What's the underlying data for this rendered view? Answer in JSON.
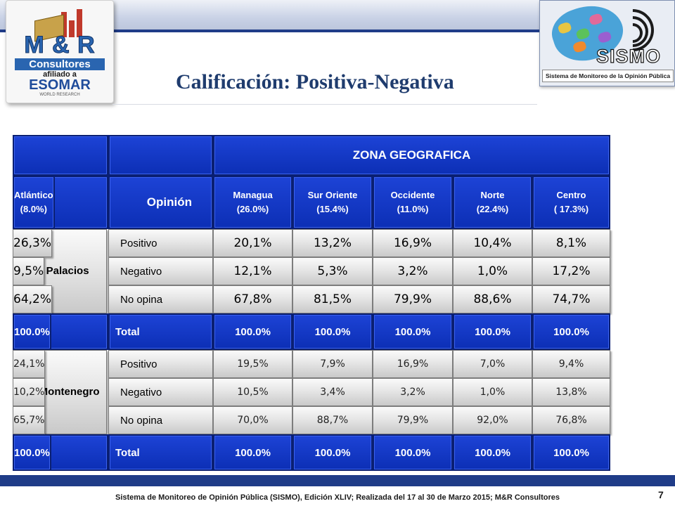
{
  "logos": {
    "mr": {
      "brand": "M & R",
      "name": "Consultores",
      "affiliation": "afiliado a",
      "partner": "ESOMAR",
      "partner_tag": "WORLD RESEARCH"
    },
    "sismo": {
      "brand": "SISMO",
      "tagline": "Sistema de Monitoreo de la Opinión Pública"
    }
  },
  "title": "Calificación: Positiva-Negativa",
  "table": {
    "zone_header": "ZONA GEOGRAFICA",
    "opinion_header": "Opinión",
    "zones": [
      {
        "name": "Managua",
        "share": "(26.0%)"
      },
      {
        "name": "Sur Oriente",
        "share": "(15.4%)"
      },
      {
        "name": "Occidente",
        "share": "(11.0%)"
      },
      {
        "name": "Norte",
        "share": "(22.4%)"
      },
      {
        "name": "Centro",
        "share": "( 17.3%)"
      },
      {
        "name": "Atlántico",
        "share": "(8.0%)"
      }
    ],
    "candidates": [
      {
        "name": "Alba Palacios",
        "rows": [
          {
            "label": "Positivo",
            "values": [
              "20,1%",
              "13,2%",
              "16,9%",
              "10,4%",
              "8,1%",
              "26,3%"
            ]
          },
          {
            "label": "Negativo",
            "values": [
              "12,1%",
              "5,3%",
              "3,2%",
              "1,0%",
              "17,2%",
              "9,5%"
            ]
          },
          {
            "label": "No opina",
            "values": [
              "67,8%",
              "81,5%",
              "79,9%",
              "88,6%",
              "74,7%",
              "64,2%"
            ]
          }
        ],
        "total": {
          "label": "Total",
          "values": [
            "100.0%",
            "100.0%",
            "100.0%",
            "100.0%",
            "100.0%",
            "100.0%"
          ]
        }
      },
      {
        "name": "Iris Montenegro",
        "rows": [
          {
            "label": "Positivo",
            "values": [
              "19,5%",
              "7,9%",
              "16,9%",
              "7,0%",
              "9,4%",
              "24,1%"
            ]
          },
          {
            "label": "Negativo",
            "values": [
              "10,5%",
              "3,4%",
              "3,2%",
              "1,0%",
              "13,8%",
              "10,2%"
            ]
          },
          {
            "label": "No opina",
            "values": [
              "70,0%",
              "88,7%",
              "79,9%",
              "92,0%",
              "76,8%",
              "65,7%"
            ]
          }
        ],
        "total": {
          "label": "Total",
          "values": [
            "100.0%",
            "100.0%",
            "100.0%",
            "100.0%",
            "100.0%",
            "100.0%"
          ]
        }
      }
    ]
  },
  "footer": "Sistema de Monitoreo de Opinión Pública (SISMO), Edición XLIV; Realizada del 17 al 30 de Marzo 2015; M&R Consultores",
  "page_number": "7",
  "colors": {
    "header_blue": "#0c2fb5",
    "title": "#1f3c6e",
    "band": "#1f3c88"
  }
}
